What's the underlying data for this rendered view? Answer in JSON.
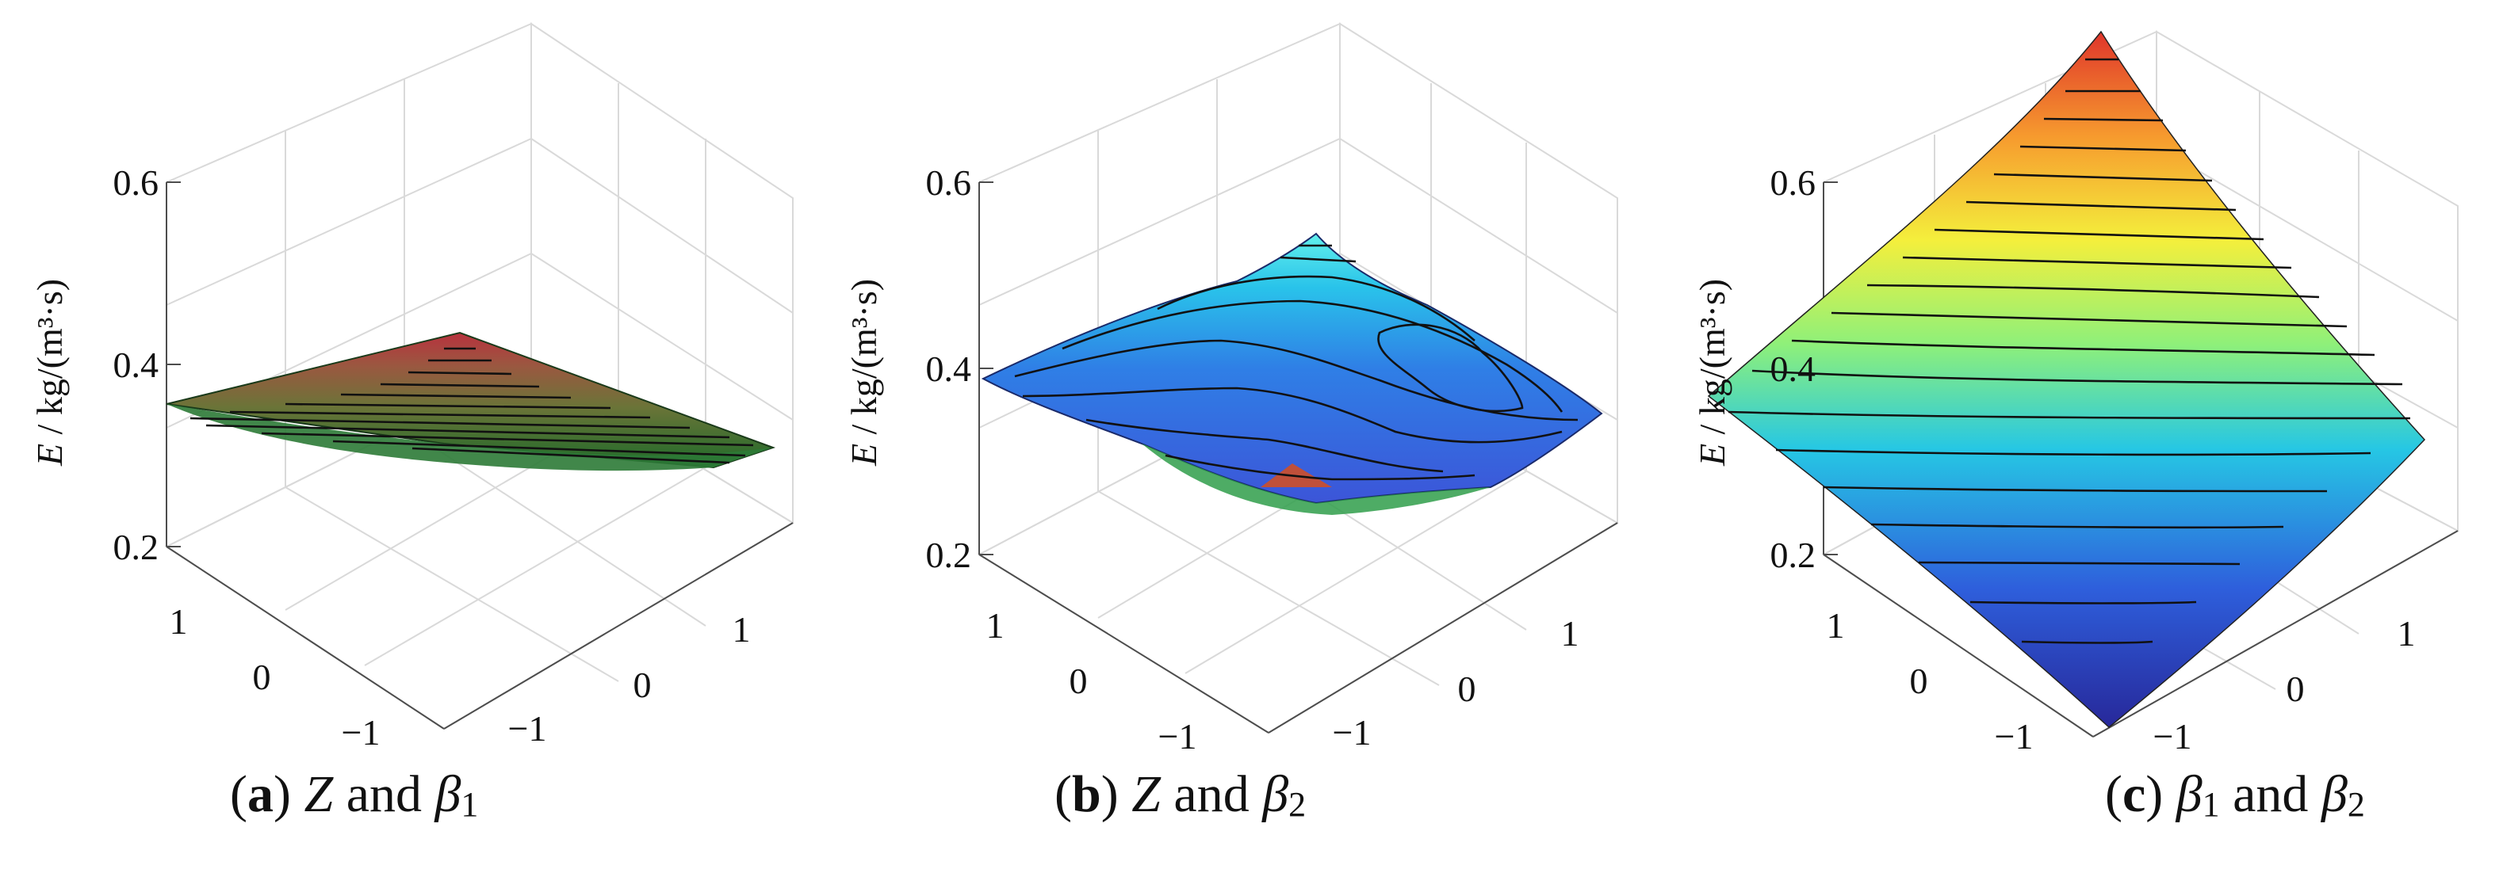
{
  "chart_data": [
    {
      "id": "a",
      "type": "surface",
      "caption_tag": "a",
      "caption_v1": "Z",
      "caption_and": "and",
      "caption_v2": "β",
      "caption_v2_sub": "1",
      "ylabel_var": "E",
      "ylabel_unit": " / kg/(m³·s)",
      "z_ticks": [
        "0.6",
        "0.4",
        "0.2"
      ],
      "x_ticks": [
        "1",
        "0",
        "−1"
      ],
      "y_ticks": [
        "−1",
        "0",
        "1"
      ],
      "zlim": [
        0.2,
        0.6
      ],
      "grid": true,
      "colormap": [
        "#2a7a2c",
        "#6f7a3a",
        "#9c5a3c",
        "#b0303a"
      ],
      "corner_values": {
        "back": 0.37,
        "left": 0.34,
        "right": 0.31,
        "front": 0.29
      }
    },
    {
      "id": "b",
      "type": "surface",
      "caption_tag": "b",
      "caption_v1": "Z",
      "caption_and": "and",
      "caption_v2": "β",
      "caption_v2_sub": "2",
      "ylabel_var": "E",
      "ylabel_unit": " / kg/(m³·s)",
      "z_ticks": [
        "0.6",
        "0.4",
        "0.2"
      ],
      "x_ticks": [
        "1",
        "0",
        "−1"
      ],
      "y_ticks": [
        "−1",
        "0",
        "1"
      ],
      "zlim": [
        0.2,
        0.6
      ],
      "grid": true,
      "colormap": [
        "#3a4fd0",
        "#2f6ee6",
        "#29b6e8",
        "#4fe6ea"
      ],
      "corner_values": {
        "back": 0.44,
        "left": 0.34,
        "right": 0.32,
        "front": 0.27
      }
    },
    {
      "id": "c",
      "type": "surface",
      "caption_tag": "c",
      "caption_v1": "β",
      "caption_v1_sub": "1",
      "caption_and": "and",
      "caption_v2": "β",
      "caption_v2_sub": "2",
      "ylabel_var": "E",
      "ylabel_unit": " / kg/(m³·s)",
      "z_ticks": [
        "0.6",
        "0.4",
        "0.2"
      ],
      "x_ticks": [
        "1",
        "0",
        "−1"
      ],
      "y_ticks": [
        "−1",
        "0",
        "1"
      ],
      "zlim": [
        0.2,
        0.6
      ],
      "grid": true,
      "colormap": [
        "#2a2d9a",
        "#2f6fe0",
        "#2ad0e0",
        "#9ef06a",
        "#f5ec3c",
        "#f59a2e",
        "#e23b2e"
      ],
      "corner_values": {
        "back": 0.66,
        "left": 0.37,
        "right": 0.35,
        "front": 0.12
      }
    }
  ]
}
